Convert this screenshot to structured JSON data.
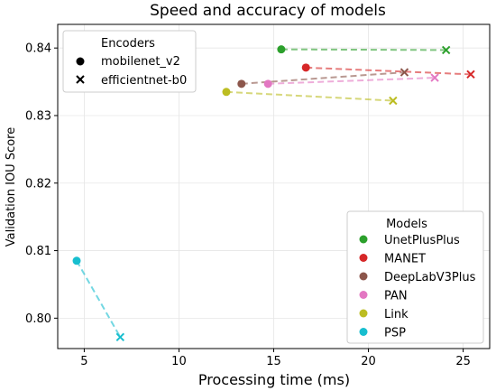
{
  "chart_data": {
    "type": "scatter",
    "title": "Speed and accuracy of models",
    "xlabel": "Processing time (ms)",
    "ylabel": "Validation IOU Score",
    "xlim": [
      3.6,
      26.4
    ],
    "ylim": [
      0.7955,
      0.8435
    ],
    "xticks": [
      5,
      10,
      15,
      20,
      25
    ],
    "yticks": [
      0.8,
      0.81,
      0.82,
      0.83,
      0.84
    ],
    "xtick_labels": [
      "5",
      "10",
      "15",
      "20",
      "25"
    ],
    "ytick_labels": [
      "0.80",
      "0.81",
      "0.82",
      "0.83",
      "0.84"
    ],
    "grid": true,
    "encoders_legend": {
      "title": "Encoders",
      "placement": "top-left",
      "items": [
        {
          "label": "mobilenet_v2",
          "marker": "circle"
        },
        {
          "label": "efficientnet-b0",
          "marker": "x"
        }
      ]
    },
    "models_legend": {
      "title": "Models",
      "placement": "bottom-right"
    },
    "series": [
      {
        "name": "UnetPlusPlus",
        "color": "#2ca02c",
        "mobilenet_v2": [
          15.4,
          0.8398
        ],
        "efficientnet-b0": [
          24.1,
          0.8397
        ]
      },
      {
        "name": "MANET",
        "color": "#d62728",
        "mobilenet_v2": [
          16.7,
          0.8371
        ],
        "efficientnet-b0": [
          25.4,
          0.8361
        ]
      },
      {
        "name": "DeepLabV3Plus",
        "color": "#8c564b",
        "mobilenet_v2": [
          13.3,
          0.8347
        ],
        "efficientnet-b0": [
          21.9,
          0.8364
        ]
      },
      {
        "name": "PAN",
        "color": "#e377c2",
        "mobilenet_v2": [
          14.7,
          0.8347
        ],
        "efficientnet-b0": [
          23.5,
          0.8356
        ]
      },
      {
        "name": "Link",
        "color": "#bcbd22",
        "mobilenet_v2": [
          12.5,
          0.8335
        ],
        "efficientnet-b0": [
          21.3,
          0.8322
        ]
      },
      {
        "name": "PSP",
        "color": "#17becf",
        "mobilenet_v2": [
          4.6,
          0.8085
        ],
        "efficientnet-b0": [
          6.9,
          0.7972
        ]
      }
    ]
  }
}
